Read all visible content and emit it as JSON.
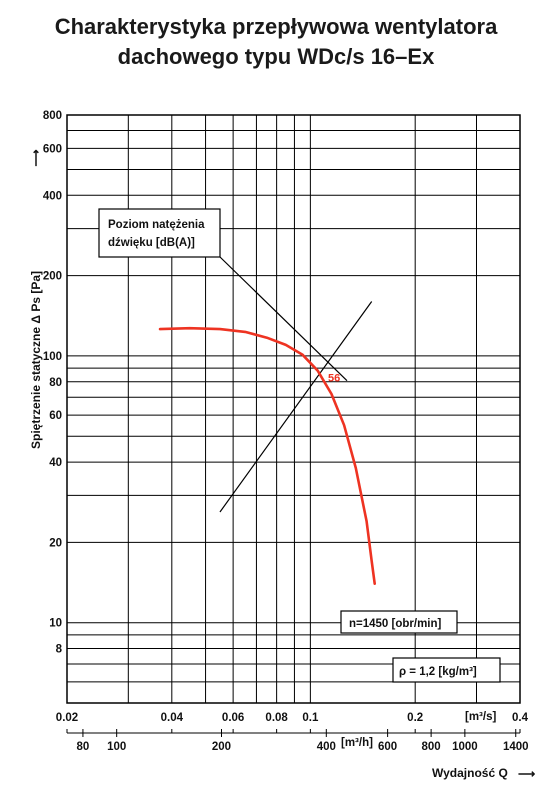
{
  "chart_data": {
    "type": "line",
    "title_line1": "Charakterystyka przepływowa wentylatora",
    "title_line2": "dachowego typu WDc/s 16–Ex",
    "ylabel": "Spiętrzenie statyczne Δ Ps [Pa]",
    "xlabel": "Wydajność Q",
    "x_scale": "log",
    "y_scale": "log",
    "xlim": [
      0.02,
      0.4
    ],
    "ylim": [
      5,
      800
    ],
    "x_unit_top": "[m³/s]",
    "x_unit_bottom": "[m³/h]",
    "x_ticks_top": [
      {
        "v": 0.02,
        "label": "0.02"
      },
      {
        "v": 0.04,
        "label": "0.04"
      },
      {
        "v": 0.06,
        "label": "0.06"
      },
      {
        "v": 0.08,
        "label": "0.08"
      },
      {
        "v": 0.1,
        "label": "0.1"
      },
      {
        "v": 0.2,
        "label": "0.2"
      },
      {
        "v": 0.4,
        "label": "0.4"
      }
    ],
    "x_ticks_bottom": [
      {
        "v": 80,
        "label": "80"
      },
      {
        "v": 100,
        "label": "100"
      },
      {
        "v": 200,
        "label": "200"
      },
      {
        "v": 400,
        "label": "400"
      },
      {
        "v": 600,
        "label": "600"
      },
      {
        "v": 800,
        "label": "800"
      },
      {
        "v": 1000,
        "label": "1000"
      },
      {
        "v": 1400,
        "label": "1400"
      }
    ],
    "y_ticks": [
      {
        "v": 8,
        "label": "8"
      },
      {
        "v": 10,
        "label": "10"
      },
      {
        "v": 20,
        "label": "20"
      },
      {
        "v": 40,
        "label": "40"
      },
      {
        "v": 60,
        "label": "60"
      },
      {
        "v": 80,
        "label": "80"
      },
      {
        "v": 100,
        "label": "100"
      },
      {
        "v": 200,
        "label": "200"
      },
      {
        "v": 400,
        "label": "400"
      },
      {
        "v": 600,
        "label": "600"
      },
      {
        "v": 800,
        "label": "800"
      }
    ],
    "x_grid": [
      0.02,
      0.03,
      0.04,
      0.05,
      0.06,
      0.07,
      0.08,
      0.09,
      0.1,
      0.2,
      0.3,
      0.4
    ],
    "y_grid": [
      5,
      6,
      7,
      8,
      9,
      10,
      20,
      30,
      40,
      50,
      60,
      70,
      80,
      90,
      100,
      200,
      300,
      400,
      500,
      600,
      700,
      800
    ],
    "fan_curve": {
      "color": "#ee3322",
      "x": [
        0.037,
        0.045,
        0.055,
        0.065,
        0.075,
        0.085,
        0.095,
        0.105,
        0.115,
        0.125,
        0.135,
        0.145,
        0.15,
        0.153
      ],
      "y": [
        126,
        127,
        126,
        123,
        117,
        110,
        101,
        88,
        72,
        55,
        38,
        24,
        17,
        14
      ]
    },
    "system_line": {
      "x": [
        0.055,
        0.15
      ],
      "y": [
        26,
        160
      ]
    },
    "sound_label": {
      "value": "56",
      "x": 0.117,
      "y": 83,
      "color": "#ee3322"
    },
    "sound_callout": {
      "line1": "Poziom natężenia",
      "line2": "dźwięku [dB(A)]",
      "to_x": 0.117,
      "to_y": 90
    },
    "speed_label": "n=1450 [obr/min]",
    "density_label": "ρ = 1,2 [kg/m³]"
  }
}
